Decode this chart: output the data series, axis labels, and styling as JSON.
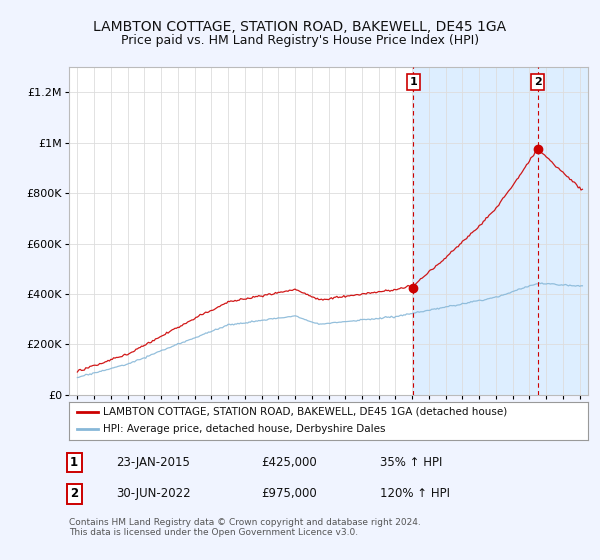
{
  "title": "LAMBTON COTTAGE, STATION ROAD, BAKEWELL, DE45 1GA",
  "subtitle": "Price paid vs. HM Land Registry's House Price Index (HPI)",
  "legend_label_red": "LAMBTON COTTAGE, STATION ROAD, BAKEWELL, DE45 1GA (detached house)",
  "legend_label_blue": "HPI: Average price, detached house, Derbyshire Dales",
  "transaction1_date": "23-JAN-2015",
  "transaction1_price": "£425,000",
  "transaction1_hpi": "35% ↑ HPI",
  "transaction1_year": 2015.07,
  "transaction1_value": 425000,
  "transaction2_date": "30-JUN-2022",
  "transaction2_price": "£975,000",
  "transaction2_hpi": "120% ↑ HPI",
  "transaction2_year": 2022.5,
  "transaction2_value": 975000,
  "footer_line1": "Contains HM Land Registry data © Crown copyright and database right 2024.",
  "footer_line2": "This data is licensed under the Open Government Licence v3.0.",
  "ylim": [
    0,
    1300000
  ],
  "xlim_start": 1994.5,
  "xlim_end": 2025.5,
  "bg_color": "#f0f4ff",
  "plot_bg_color": "#ffffff",
  "shade_color": "#ddeeff",
  "red_color": "#cc0000",
  "blue_color": "#88b8d8",
  "grid_color": "#dddddd",
  "title_fontsize": 10,
  "subtitle_fontsize": 9,
  "tick_fontsize": 7.5,
  "ytick_fontsize": 8
}
